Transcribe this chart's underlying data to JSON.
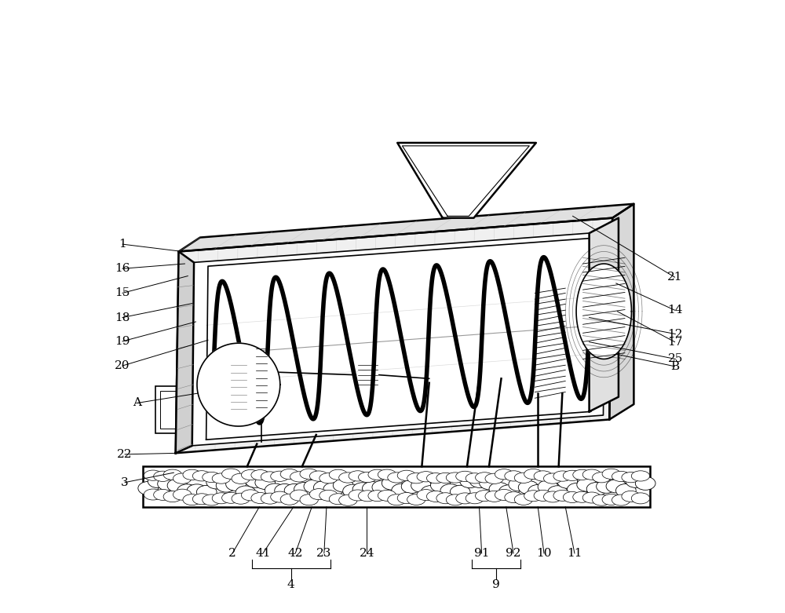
{
  "background_color": "#ffffff",
  "line_color": "#000000",
  "label_color": "#000000",
  "fig_width": 10.0,
  "fig_height": 7.81,
  "label_fs": 11
}
